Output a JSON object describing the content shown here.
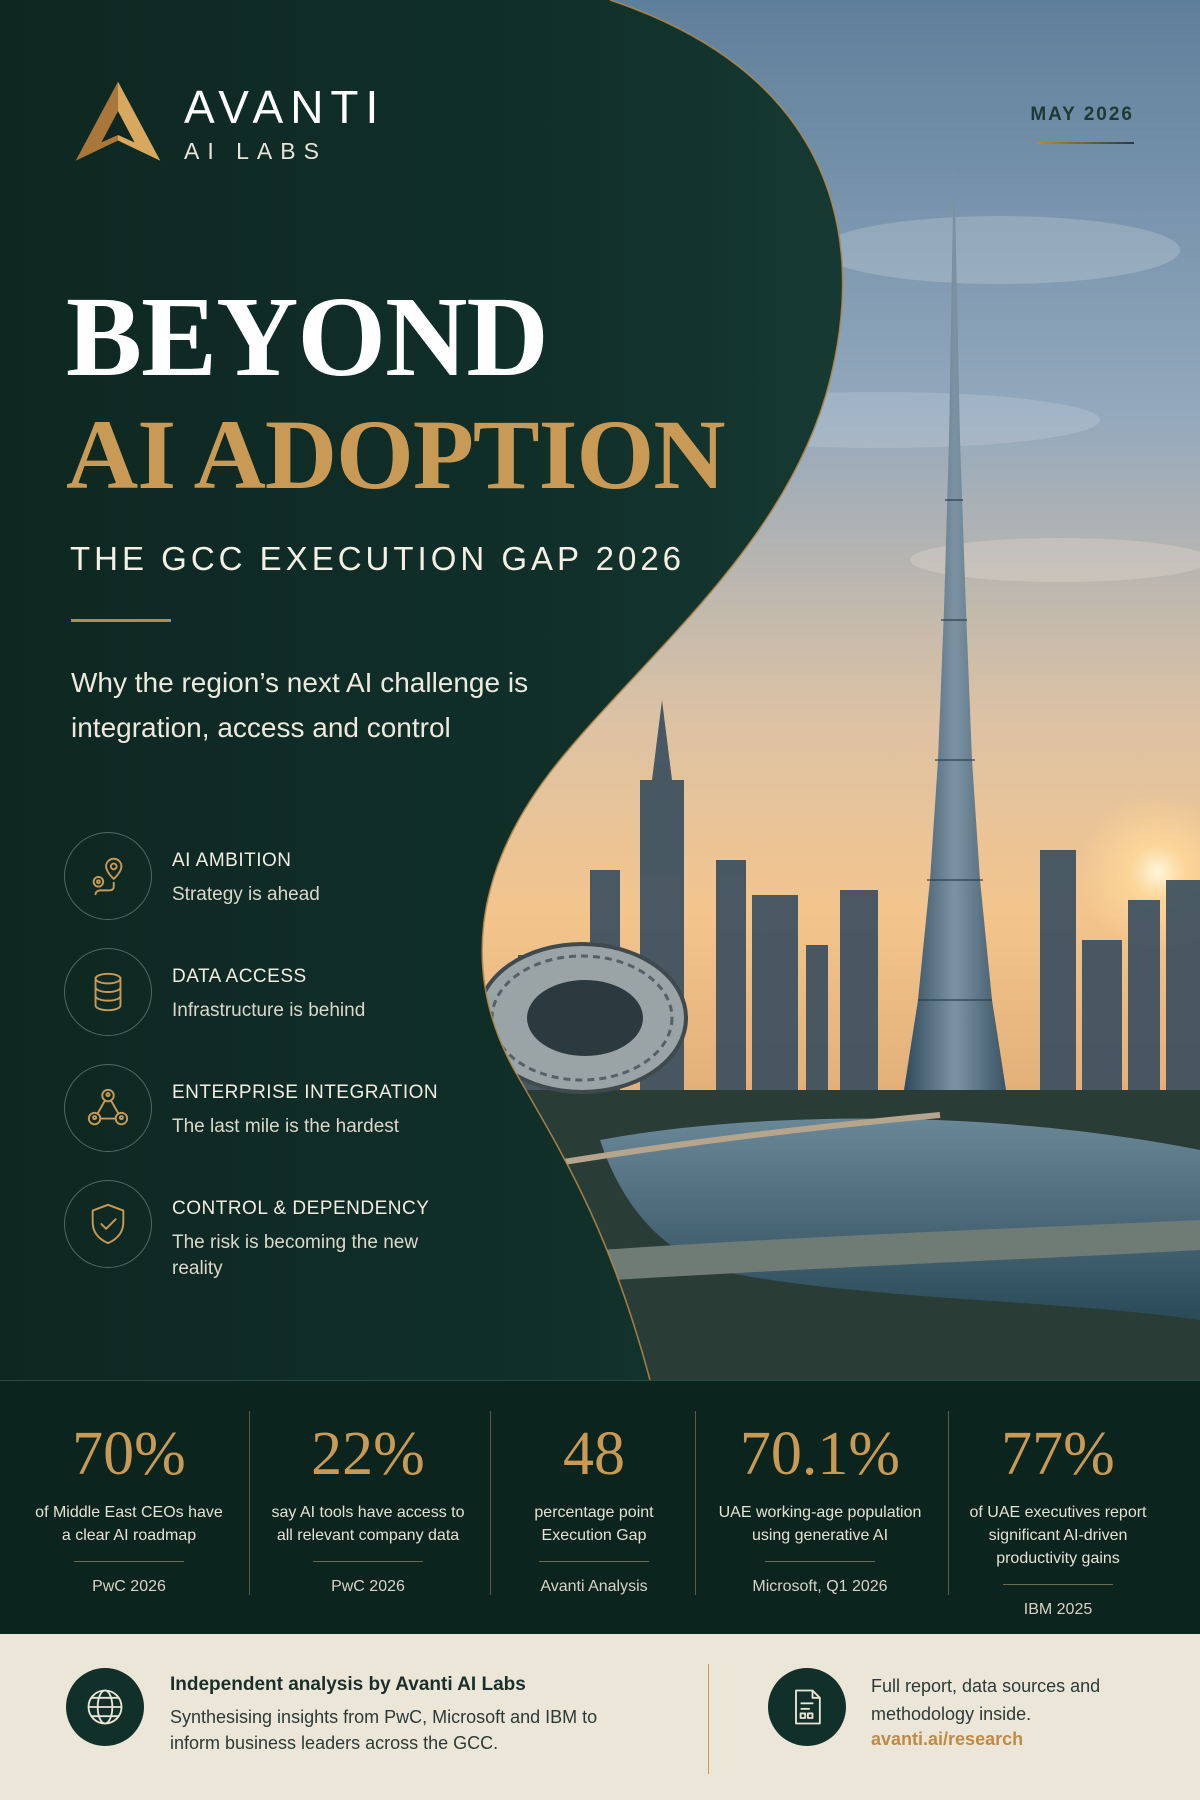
{
  "brand": {
    "name": "AVANTI",
    "sub": "AI LABS"
  },
  "date": "MAY 2026",
  "headline": {
    "line1": "BEYOND",
    "line2": "AI ADOPTION"
  },
  "kicker": "THE GCC EXECUTION GAP 2026",
  "lede": "Why the region’s next AI challenge is integration, access and control",
  "features": [
    {
      "icon": "map-route-icon",
      "title": "AI AMBITION",
      "desc": "Strategy is ahead"
    },
    {
      "icon": "database-icon",
      "title": "DATA ACCESS",
      "desc": "Infrastructure is behind"
    },
    {
      "icon": "network-icon",
      "title": "ENTERPRISE INTEGRATION",
      "desc": "The last mile is the hardest"
    },
    {
      "icon": "shield-check-icon",
      "title": "CONTROL & DEPENDENCY",
      "desc": "The risk is becoming the new reality"
    }
  ],
  "stats": [
    {
      "value": "70%",
      "desc": "of Middle East CEOs have a clear AI roadmap",
      "source": "PwC 2026"
    },
    {
      "value": "22%",
      "desc": "say AI tools have access to all relevant company data",
      "source": "PwC 2026"
    },
    {
      "value": "48",
      "desc": "percentage point Execution Gap",
      "source": "Avanti Analysis"
    },
    {
      "value": "70.1%",
      "desc": "UAE working-age population using generative AI",
      "source": "Microsoft, Q1 2026"
    },
    {
      "value": "77%",
      "desc": "of UAE executives report significant AI-driven productivity gains",
      "source": "IBM 2025"
    }
  ],
  "footer": {
    "title": "Independent analysis by Avanti AI Labs",
    "text": "Synthesising insights from PwC, Microsoft and IBM to inform business leaders across the GCC.",
    "cta": "Full report, data sources and methodology inside.",
    "link": "avanti.ai/research"
  },
  "colors": {
    "gold": "#c99a55",
    "green": "#0f2620",
    "cream": "#ece6d8"
  }
}
